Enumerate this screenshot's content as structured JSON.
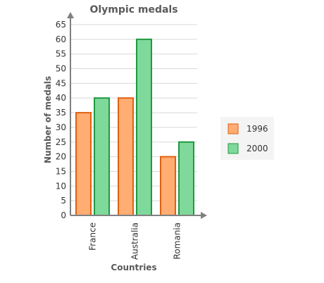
{
  "chart_data": {
    "type": "bar",
    "title": "Olympic medals",
    "xlabel": "Countries",
    "ylabel": "Number of medals",
    "categories": [
      "France",
      "Australia",
      "Romania"
    ],
    "series": [
      {
        "name": "1996",
        "values": [
          35,
          40,
          20
        ],
        "fill": "#ffad73",
        "stroke": "#e06010"
      },
      {
        "name": "2000",
        "values": [
          40,
          60,
          25
        ],
        "fill": "#7fd99b",
        "stroke": "#1f9a3f"
      }
    ],
    "ylim": [
      0,
      65
    ],
    "yticks": [
      0,
      5,
      10,
      15,
      20,
      25,
      30,
      35,
      40,
      45,
      50,
      55,
      60,
      65
    ],
    "grid": true,
    "legend_position": "right"
  }
}
